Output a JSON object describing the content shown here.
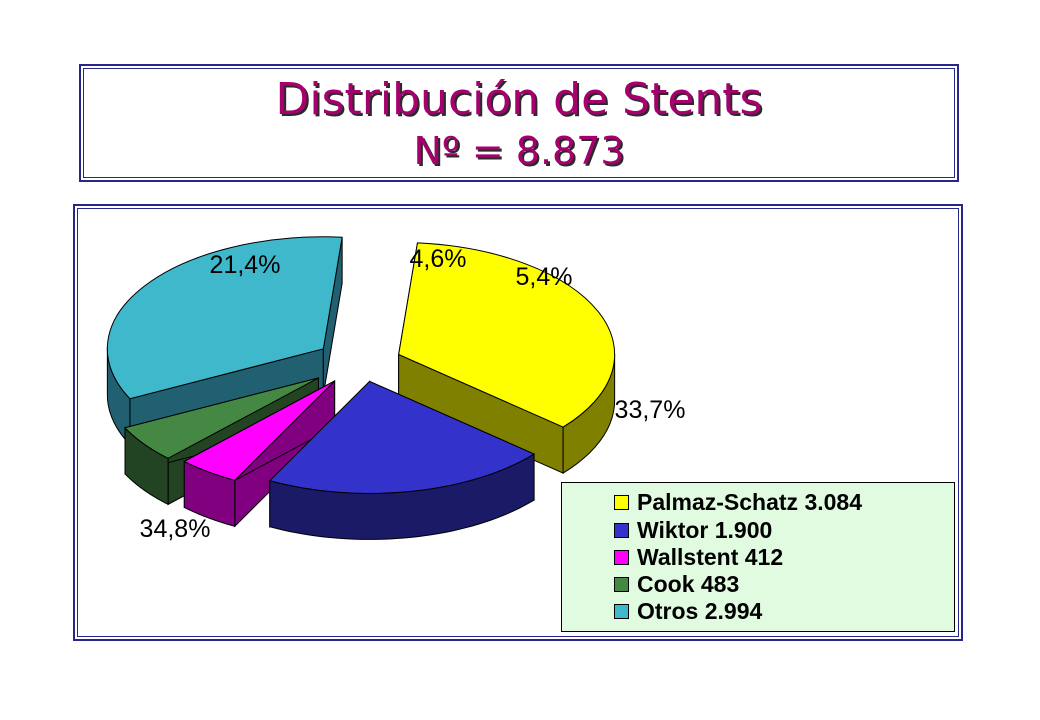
{
  "title": {
    "line1": "Distribución de Stents",
    "line2": "Nº = 8.873"
  },
  "chart_data": {
    "type": "pie",
    "title": "Distribución de Stents",
    "subtitle": "Nº = 8.873",
    "slices": [
      {
        "name": "Palmaz-Schatz",
        "count": "3.084",
        "legend": "Palmaz-Schatz 3.084",
        "percent_label": "34,8%",
        "value": 34.8,
        "color": "#ffff00",
        "side_color": "#808000"
      },
      {
        "name": "Wiktor",
        "count": "1.900",
        "legend": "Wiktor 1.900",
        "percent_label": "21,4%",
        "value": 21.4,
        "color": "#3333cc",
        "side_color": "#1a1a66"
      },
      {
        "name": "Wallstent",
        "count": "412",
        "legend": "Wallstent 412",
        "percent_label": "4,6%",
        "value": 4.6,
        "color": "#ff00ff",
        "side_color": "#800080"
      },
      {
        "name": "Cook",
        "count": "483",
        "legend": "Cook 483",
        "percent_label": "5,4%",
        "value": 5.4,
        "color": "#448844",
        "side_color": "#224422"
      },
      {
        "name": "Otros",
        "count": "2.994",
        "legend": "Otros 2.994",
        "percent_label": "33,7%",
        "value": 33.7,
        "color": "#40b8cc",
        "side_color": "#206070"
      }
    ],
    "legend_position": "bottom-right",
    "style": "3d-exploded-pie"
  }
}
